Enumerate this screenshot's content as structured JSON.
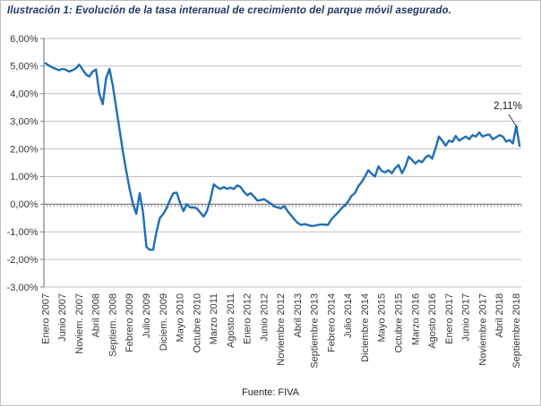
{
  "title": "Ilustración 1: Evolución de la tasa interanual de crecimiento del parque móvil asegurado.",
  "source": "Fuente: FIVA",
  "annotation": {
    "label": "2,11%"
  },
  "colors": {
    "line": "#1f6fb5",
    "grid": "#c0c0c0",
    "axis": "#808080",
    "axis_text": "#383838",
    "annotation_text": "#1a1a1a",
    "title_text": "#1f3864"
  },
  "chart_data": {
    "type": "line",
    "x_start": "Enero 2007",
    "x_end": "Octubre 2018",
    "x_frequency": "monthly",
    "x_tick_labels": [
      "Enero 2007",
      "Junio 2007",
      "Noviem. 2007",
      "Abril 2008",
      "Septiem. 2008",
      "Febrero 2009",
      "Julio 2009",
      "Diciem. 2009",
      "Mayo 2010",
      "Octubre 2010",
      "Marzo 2011",
      "Agosto 2011",
      "Enero 2012",
      "Junio 2012",
      "Noviembre 2012",
      "Abril 2013",
      "Septiembre 2013",
      "Febrero 2014",
      "Julio 2014",
      "Diciembre 2014",
      "Mayo 2015",
      "Octubre 2015",
      "Marzo 2016",
      "Agosto 2016",
      "Enero 2017",
      "Junio 2017",
      "Noviembre 2017",
      "Abril 2018",
      "Septiembre 2018"
    ],
    "x_tick_indices": [
      0,
      5,
      10,
      15,
      20,
      25,
      30,
      35,
      40,
      45,
      50,
      55,
      60,
      65,
      70,
      75,
      80,
      85,
      90,
      95,
      100,
      105,
      110,
      115,
      120,
      125,
      130,
      135,
      140
    ],
    "y_tick_values": [
      6,
      5,
      4,
      3,
      2,
      1,
      0,
      -1,
      -2,
      -3
    ],
    "y_tick_labels": [
      "6,00%",
      "5,00%",
      "4,00%",
      "3,00%",
      "2,00%",
      "1,00%",
      "0,00%",
      "-1,00%",
      "-2,00%",
      "-3,00%"
    ],
    "ylim": [
      -3,
      6
    ],
    "grid": true,
    "legend": false,
    "values": [
      5.1,
      5.02,
      4.95,
      4.9,
      4.85,
      4.9,
      4.87,
      4.8,
      4.85,
      4.92,
      5.05,
      4.88,
      4.7,
      4.62,
      4.8,
      4.88,
      4.0,
      3.62,
      4.55,
      4.9,
      4.3,
      3.5,
      2.7,
      1.9,
      1.2,
      0.55,
      0.0,
      -0.35,
      0.4,
      -0.3,
      -1.55,
      -1.65,
      -1.65,
      -1.0,
      -0.5,
      -0.35,
      -0.15,
      0.15,
      0.4,
      0.42,
      0.05,
      -0.25,
      0.0,
      -0.12,
      -0.12,
      -0.15,
      -0.3,
      -0.45,
      -0.25,
      0.15,
      0.72,
      0.62,
      0.55,
      0.62,
      0.55,
      0.6,
      0.55,
      0.68,
      0.62,
      0.45,
      0.32,
      0.4,
      0.28,
      0.13,
      0.15,
      0.18,
      0.1,
      0.02,
      -0.08,
      -0.12,
      -0.15,
      -0.07,
      -0.25,
      -0.4,
      -0.55,
      -0.68,
      -0.75,
      -0.72,
      -0.75,
      -0.79,
      -0.78,
      -0.75,
      -0.73,
      -0.74,
      -0.75,
      -0.55,
      -0.42,
      -0.3,
      -0.15,
      -0.05,
      0.1,
      0.3,
      0.4,
      0.65,
      0.8,
      1.0,
      1.23,
      1.1,
      1.0,
      1.37,
      1.2,
      1.15,
      1.23,
      1.12,
      1.3,
      1.42,
      1.12,
      1.35,
      1.72,
      1.6,
      1.47,
      1.58,
      1.52,
      1.69,
      1.77,
      1.65,
      2.02,
      2.45,
      2.3,
      2.12,
      2.3,
      2.25,
      2.47,
      2.3,
      2.38,
      2.45,
      2.35,
      2.5,
      2.45,
      2.6,
      2.45,
      2.5,
      2.52,
      2.35,
      2.42,
      2.5,
      2.45,
      2.26,
      2.33,
      2.2,
      2.83,
      2.11
    ]
  }
}
